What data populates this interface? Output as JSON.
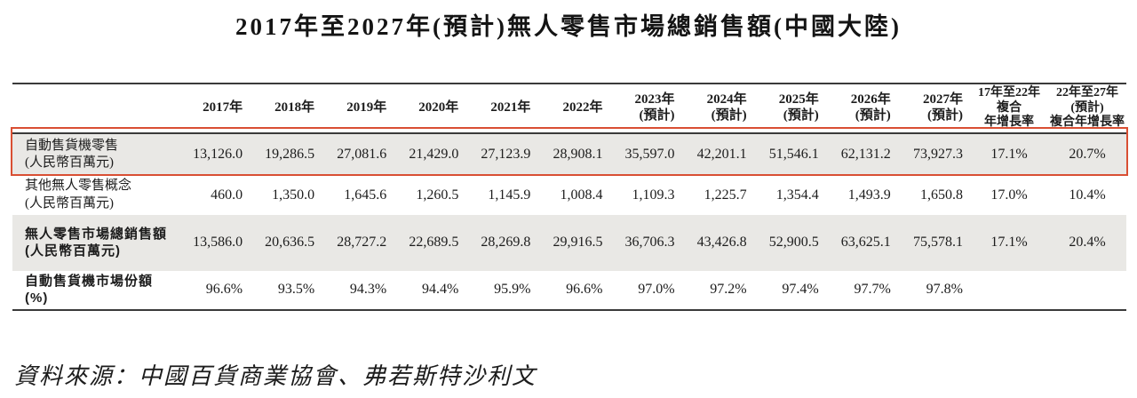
{
  "title": "2017年至2027年(預計)無人零售市場總銷售額(中國大陸)",
  "source": "資料來源：中國百貨商業協會、弗若斯特沙利文",
  "colors": {
    "highlight_red": "#d94f33",
    "row_shade": "#e9e8e5",
    "rule_dark": "#3a3a3a"
  },
  "table": {
    "columns": [
      "",
      "2017年",
      "2018年",
      "2019年",
      "2020年",
      "2021年",
      "2022年",
      "2023年\n(預計)",
      "2024年\n(預計)",
      "2025年\n(預計)",
      "2026年\n(預計)",
      "2027年\n(預計)",
      "17年至22年\n複合\n年增長率",
      "22年至27年\n(預計)\n複合年增長率"
    ],
    "rows": [
      {
        "label": "自動售貨機零售\n(人民幣百萬元)",
        "values": [
          "13,126.0",
          "19,286.5",
          "27,081.6",
          "21,429.0",
          "27,123.9",
          "28,908.1",
          "35,597.0",
          "42,201.1",
          "51,546.1",
          "62,131.2",
          "73,927.3",
          "17.1%",
          "20.7%"
        ],
        "bold": false,
        "shaded": true,
        "highlighted": true
      },
      {
        "label": "其他無人零售概念\n(人民幣百萬元)",
        "values": [
          "460.0",
          "1,350.0",
          "1,645.6",
          "1,260.5",
          "1,145.9",
          "1,008.4",
          "1,109.3",
          "1,225.7",
          "1,354.4",
          "1,493.9",
          "1,650.8",
          "17.0%",
          "10.4%"
        ],
        "bold": false,
        "shaded": false,
        "highlighted": false
      },
      {
        "label": "無人零售市場總銷售額\n(人民幣百萬元)",
        "values": [
          "13,586.0",
          "20,636.5",
          "28,727.2",
          "22,689.5",
          "28,269.8",
          "29,916.5",
          "36,706.3",
          "43,426.8",
          "52,900.5",
          "63,625.1",
          "75,578.1",
          "17.1%",
          "20.4%"
        ],
        "bold": true,
        "shaded": true,
        "highlighted": false
      },
      {
        "label": "自動售貨機市場份額 (%)",
        "values": [
          "96.6%",
          "93.5%",
          "94.3%",
          "94.4%",
          "95.9%",
          "96.6%",
          "97.0%",
          "97.2%",
          "97.4%",
          "97.7%",
          "97.8%",
          "",
          ""
        ],
        "bold": true,
        "shaded": false,
        "highlighted": false
      }
    ]
  }
}
